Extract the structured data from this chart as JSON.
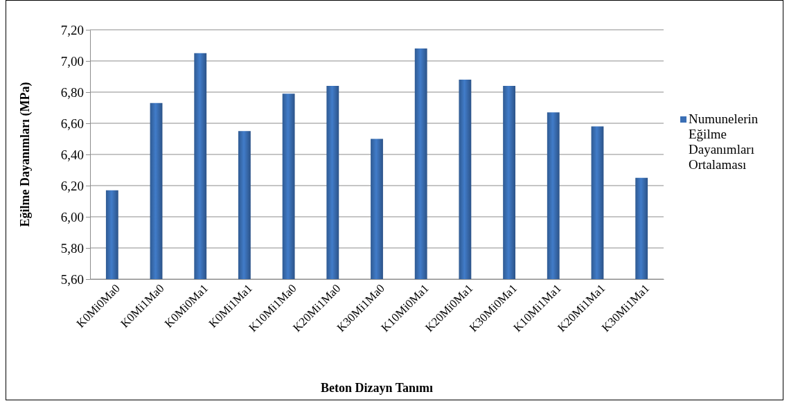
{
  "chart_data": {
    "type": "bar",
    "xlabel": "Beton Dizayn Tanımı",
    "ylabel": "Eğilme Dayanımları (MPa)",
    "categories": [
      "K0Mi0Ma0",
      "K0Mi1Ma0",
      "K0Mi0Ma1",
      "K0Mi1Ma1",
      "K10Mi1Ma0",
      "K20Mi1Ma0",
      "K30Mi1Ma0",
      "K10Mi0Ma1",
      "K20Mi0Ma1",
      "K30Mi0Ma1",
      "K10Mi1Ma1",
      "K20Mi1Ma1",
      "K30Mi1Ma1"
    ],
    "series": [
      {
        "name": "Numunelerin Eğilme Dayanımları Ortalaması",
        "color": "#3a6fb5",
        "values": [
          6.17,
          6.73,
          7.05,
          6.55,
          6.79,
          6.84,
          6.5,
          7.08,
          6.88,
          6.84,
          6.67,
          6.58,
          6.25
        ]
      }
    ],
    "ylim": [
      5.6,
      7.2
    ],
    "yticks": [
      {
        "value": 5.6,
        "label": "5,60"
      },
      {
        "value": 5.8,
        "label": "5,80"
      },
      {
        "value": 6.0,
        "label": "6,00"
      },
      {
        "value": 6.2,
        "label": "6,20"
      },
      {
        "value": 6.4,
        "label": "6,40"
      },
      {
        "value": 6.6,
        "label": "6,60"
      },
      {
        "value": 6.8,
        "label": "6,80"
      },
      {
        "value": 7.0,
        "label": "7,00"
      },
      {
        "value": 7.2,
        "label": "7,20"
      }
    ],
    "grid": "y",
    "legend": "right"
  }
}
